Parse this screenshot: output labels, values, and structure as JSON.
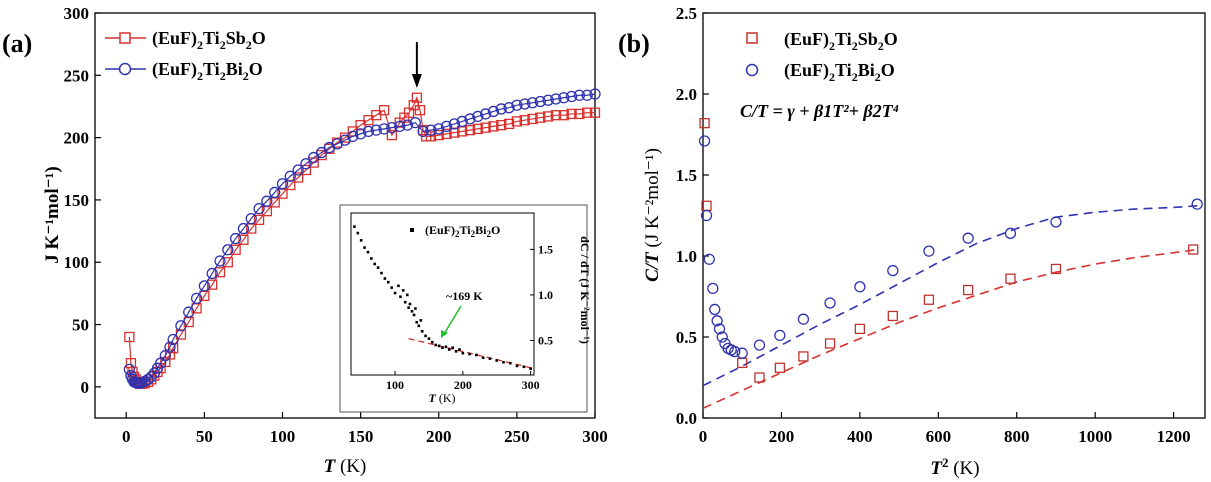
{
  "chart_data": [
    {
      "panel": "(a)",
      "type": "scatter",
      "xlabel_italic": "T",
      "xlabel_unit": " (K)",
      "ylabel": "J K⁻¹mol⁻¹)",
      "xlim": [
        -20,
        300
      ],
      "ylim": [
        -25,
        300
      ],
      "xticks": [
        0,
        50,
        100,
        150,
        200,
        250,
        300
      ],
      "yticks": [
        0,
        50,
        100,
        150,
        200,
        250,
        300
      ],
      "series": [
        {
          "name": "(EuF)2Ti2Sb2O",
          "legend_main": "(EuF)",
          "legend_parts": [
            "2",
            "Ti",
            "2",
            "Sb",
            "2",
            "O"
          ],
          "marker": "square",
          "color": "#d9312e",
          "x": [
            2,
            3,
            4,
            5,
            6,
            7,
            8,
            9,
            10,
            12,
            14,
            16,
            18,
            20,
            22,
            25,
            28,
            30,
            35,
            40,
            45,
            50,
            55,
            60,
            65,
            70,
            75,
            80,
            85,
            90,
            95,
            100,
            105,
            110,
            115,
            120,
            125,
            130,
            135,
            140,
            145,
            150,
            155,
            160,
            165,
            170,
            175,
            178,
            181,
            184,
            186,
            188,
            190,
            192,
            195,
            200,
            205,
            210,
            215,
            220,
            225,
            230,
            235,
            240,
            245,
            250,
            255,
            260,
            265,
            270,
            275,
            280,
            285,
            290,
            295,
            300
          ],
          "y": [
            40,
            19,
            12,
            8,
            6,
            4,
            3,
            2.5,
            2.5,
            3,
            4,
            6,
            9,
            12,
            15,
            20,
            26,
            31,
            42,
            52,
            63,
            73,
            82,
            92,
            100,
            110,
            118,
            127,
            134,
            141,
            148,
            155,
            162,
            168,
            174,
            180,
            186,
            191,
            196,
            200,
            205,
            210,
            214,
            218,
            222,
            202,
            212,
            216,
            220,
            226,
            232,
            222,
            206,
            201,
            201,
            202,
            203,
            204,
            205,
            206,
            207,
            208,
            209,
            210,
            211,
            213,
            214,
            215,
            216,
            217,
            218,
            218,
            219,
            219,
            220,
            220
          ]
        },
        {
          "name": "(EuF)2Ti2Bi2O",
          "legend_main": "(EuF)",
          "legend_parts": [
            "2",
            "Ti",
            "2",
            "Bi",
            "2",
            "O"
          ],
          "marker": "circle",
          "color": "#2f33b0",
          "x": [
            2,
            3,
            4,
            5,
            6,
            7,
            8,
            9,
            10,
            12,
            14,
            16,
            18,
            20,
            22,
            25,
            28,
            30,
            35,
            40,
            45,
            50,
            55,
            60,
            65,
            70,
            75,
            80,
            85,
            90,
            95,
            100,
            105,
            110,
            115,
            120,
            125,
            130,
            135,
            140,
            145,
            150,
            155,
            160,
            165,
            170,
            175,
            180,
            185,
            190,
            195,
            200,
            205,
            210,
            215,
            220,
            225,
            230,
            235,
            240,
            245,
            250,
            255,
            260,
            265,
            270,
            275,
            280,
            285,
            290,
            295,
            300
          ],
          "y": [
            14,
            9,
            6,
            4,
            3.5,
            3,
            3,
            3,
            3.5,
            4.5,
            6,
            8,
            11,
            15,
            19,
            25,
            32,
            38,
            49,
            60,
            71,
            81,
            91,
            101,
            110,
            119,
            127,
            135,
            143,
            149,
            156,
            163,
            169,
            174,
            179,
            184,
            188,
            192,
            195,
            198,
            201,
            203,
            205,
            206,
            207,
            208,
            209,
            210,
            212,
            205,
            206,
            207,
            209,
            211,
            213,
            215,
            217,
            219,
            221,
            223,
            224,
            226,
            227,
            228,
            229,
            230,
            231,
            232,
            233,
            234,
            234,
            235
          ]
        }
      ],
      "annotation_arrow_x": 186,
      "inset": {
        "type": "scatter",
        "legend": "(EuF)",
        "legend_parts": [
          "2",
          "Ti",
          "2",
          "Bi",
          "2",
          "O"
        ],
        "xlabel_italic": "T",
        "xlabel_unit": " (K)",
        "ylabel": "dC / dT  (J K⁻²mol⁻¹)",
        "xlim": [
          35,
          305
        ],
        "ylim": [
          0.12,
          1.9
        ],
        "xticks": [
          100,
          200,
          300
        ],
        "yticks": [
          0.5,
          1.0,
          1.5
        ],
        "ytick_labels": [
          "0.5",
          "1.0",
          "1.5"
        ],
        "annotation": "~169 K",
        "annotation_x": 169,
        "fit_line": {
          "x": [
            120,
            300
          ],
          "y": [
            0.52,
            0.2
          ]
        },
        "x": [
          40,
          45,
          50,
          55,
          60,
          65,
          70,
          75,
          80,
          85,
          90,
          95,
          100,
          105,
          108,
          112,
          115,
          118,
          120,
          122,
          125,
          128,
          130,
          132,
          135,
          138,
          140,
          145,
          150,
          155,
          160,
          165,
          170,
          175,
          180,
          185,
          190,
          195,
          200,
          210,
          220,
          230,
          240,
          250,
          260,
          270,
          280,
          290,
          300
        ],
        "y": [
          1.75,
          1.68,
          1.6,
          1.52,
          1.47,
          1.4,
          1.34,
          1.3,
          1.24,
          1.18,
          1.14,
          1.08,
          1.02,
          1.1,
          0.98,
          1.05,
          0.92,
          1.0,
          0.86,
          0.9,
          0.82,
          0.78,
          0.85,
          0.7,
          0.66,
          0.72,
          0.6,
          0.55,
          0.52,
          0.48,
          0.45,
          0.44,
          0.42,
          0.43,
          0.4,
          0.42,
          0.38,
          0.4,
          0.36,
          0.35,
          0.34,
          0.31,
          0.3,
          0.28,
          0.26,
          0.25,
          0.22,
          0.21,
          0.19
        ]
      }
    },
    {
      "panel": "(b)",
      "type": "scatter",
      "xlabel_italic": "T",
      "xlabel_sup": "2",
      "xlabel_unit": " (K)",
      "ylabel_italic": "C/T",
      "ylabel_unit": "  (J K⁻²mol⁻¹)",
      "xlim": [
        0,
        1280
      ],
      "ylim": [
        0,
        2.5
      ],
      "xticks": [
        0,
        200,
        400,
        600,
        800,
        1000,
        1200
      ],
      "yticks": [
        0.0,
        0.5,
        1.0,
        1.5,
        2.0,
        2.5
      ],
      "ytick_labels": [
        "0.0",
        "0.5",
        "1.0",
        "1.5",
        "2.0",
        "2.5"
      ],
      "formula": "C/T = γ + β1T²+ β2T⁴",
      "series": [
        {
          "name": "(EuF)2Ti2Sb2O",
          "legend_main": "(EuF)",
          "legend_parts": [
            "2",
            "Ti",
            "2",
            "Sb",
            "2",
            "O"
          ],
          "marker": "square",
          "color": "#c0322f",
          "x": [
            4,
            9,
            100,
            144,
            196,
            256,
            324,
            400,
            484,
            576,
            676,
            784,
            900,
            1250
          ],
          "y": [
            1.82,
            1.31,
            0.34,
            0.25,
            0.31,
            0.38,
            0.46,
            0.55,
            0.63,
            0.73,
            0.79,
            0.86,
            0.92,
            1.04
          ],
          "fit": {
            "color": "#d9312e",
            "x": [
              0,
              100,
              200,
              300,
              400,
              500,
              600,
              700,
              800,
              900,
              1000,
              1100,
              1200,
              1260
            ],
            "y": [
              0.06,
              0.17,
              0.28,
              0.39,
              0.49,
              0.59,
              0.68,
              0.76,
              0.84,
              0.9,
              0.95,
              0.99,
              1.02,
              1.04
            ]
          }
        },
        {
          "name": "(EuF)2Ti2Bi2O",
          "legend_main": "(EuF)",
          "legend_parts": [
            "2",
            "Ti",
            "2",
            "Bi",
            "2",
            "O"
          ],
          "marker": "circle",
          "color": "#2f33b0",
          "x": [
            4,
            9,
            16,
            25,
            30,
            36,
            42,
            49,
            56,
            64,
            72,
            81,
            100,
            144,
            196,
            256,
            324,
            400,
            484,
            576,
            676,
            784,
            900,
            1260
          ],
          "y": [
            1.71,
            1.25,
            0.98,
            0.8,
            0.67,
            0.6,
            0.55,
            0.5,
            0.46,
            0.43,
            0.42,
            0.41,
            0.4,
            0.45,
            0.51,
            0.61,
            0.71,
            0.81,
            0.91,
            1.03,
            1.11,
            1.14,
            1.21,
            1.32
          ],
          "fit": {
            "color": "#2f33b0",
            "x": [
              0,
              100,
              200,
              300,
              400,
              500,
              600,
              700,
              800,
              900,
              1000,
              1100,
              1200,
              1260
            ],
            "y": [
              0.2,
              0.32,
              0.45,
              0.58,
              0.7,
              0.83,
              0.96,
              1.08,
              1.17,
              1.24,
              1.27,
              1.29,
              1.3,
              1.31
            ]
          }
        }
      ]
    }
  ]
}
